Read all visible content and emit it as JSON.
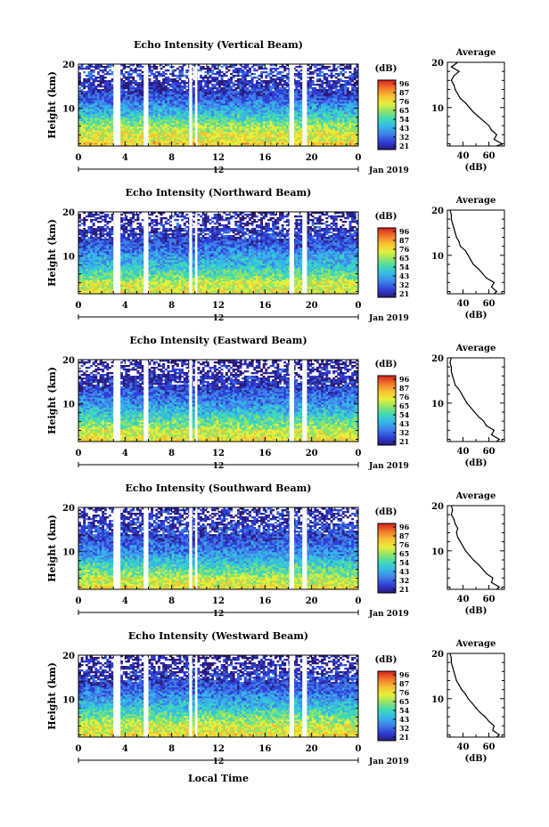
{
  "figure": {
    "xlabel": "Local Time",
    "colors": {
      "background": "#ffffff",
      "axis": "#000000",
      "colormap": [
        "#2b1a7a",
        "#2f3fd6",
        "#3f7fe8",
        "#35b6e8",
        "#3fd8b8",
        "#8fe36a",
        "#e6ef3a",
        "#f7c233",
        "#f27a2a",
        "#d62020"
      ]
    }
  },
  "chart_data": [
    {
      "type": "heatmap",
      "title": "Echo Intensity (Vertical Beam)",
      "ylabel": "Height (km)",
      "x_ticks": [
        "0",
        "4",
        "8",
        "12",
        "16",
        "20",
        "0"
      ],
      "xlim": [
        0,
        24
      ],
      "ylim": [
        1.5,
        20
      ],
      "y_ticks": [
        "10",
        "20"
      ],
      "date_marker": "12",
      "date_label": "Jan 2019",
      "colorbar": {
        "title": "(dB)",
        "ticks": [
          "96",
          "87",
          "76",
          "65",
          "54",
          "43",
          "32",
          "21"
        ],
        "range": [
          21,
          96
        ]
      },
      "data_gaps_hours": [
        [
          3.0,
          3.6
        ],
        [
          5.6,
          6.0
        ],
        [
          9.5,
          9.75
        ],
        [
          10.0,
          10.2
        ],
        [
          18.1,
          18.5
        ],
        [
          19.2,
          19.6
        ]
      ],
      "average_profile": {
        "title": "Average",
        "xlabel": "(dB)",
        "x_ticks": [
          "40",
          "60"
        ],
        "xlim": [
          28,
          72
        ],
        "y_ticks": [
          "10",
          "20"
        ],
        "heights_km": [
          1.5,
          2,
          3,
          4,
          5,
          6,
          7,
          8,
          9,
          10,
          11,
          12,
          13,
          14,
          15,
          16,
          17,
          18,
          19,
          20
        ],
        "values_db": [
          66,
          70,
          64,
          66,
          62,
          60,
          56,
          52,
          48,
          45,
          42,
          38,
          36,
          34,
          33,
          31,
          33,
          37,
          31,
          36
        ]
      }
    },
    {
      "type": "heatmap",
      "title": "Echo Intensity (Northward Beam)",
      "ylabel": "Height (km)",
      "x_ticks": [
        "0",
        "4",
        "8",
        "12",
        "16",
        "20",
        "0"
      ],
      "xlim": [
        0,
        24
      ],
      "ylim": [
        1.5,
        20
      ],
      "y_ticks": [
        "10",
        "20"
      ],
      "date_marker": "12",
      "date_label": "Jan 2019",
      "colorbar": {
        "title": "(dB)",
        "ticks": [
          "96",
          "87",
          "76",
          "65",
          "54",
          "43",
          "32",
          "21"
        ],
        "range": [
          21,
          96
        ]
      },
      "data_gaps_hours": [
        [
          3.0,
          3.6
        ],
        [
          5.6,
          6.0
        ],
        [
          9.5,
          9.75
        ],
        [
          10.0,
          10.2
        ],
        [
          18.1,
          18.5
        ],
        [
          19.2,
          19.6
        ]
      ],
      "average_profile": {
        "title": "Average",
        "xlabel": "(dB)",
        "x_ticks": [
          "40",
          "60"
        ],
        "xlim": [
          28,
          72
        ],
        "y_ticks": [
          "10",
          "20"
        ],
        "heights_km": [
          1.5,
          2,
          3,
          4,
          5,
          6,
          7,
          8,
          9,
          10,
          11,
          12,
          13,
          14,
          15,
          16,
          17,
          18,
          19,
          20
        ],
        "values_db": [
          64,
          66,
          62,
          64,
          58,
          55,
          52,
          48,
          46,
          44,
          42,
          38,
          37,
          35,
          34,
          33,
          32,
          31,
          31,
          30
        ]
      }
    },
    {
      "type": "heatmap",
      "title": "Echo Intensity (Eastward Beam)",
      "ylabel": "Height (km)",
      "x_ticks": [
        "0",
        "4",
        "8",
        "12",
        "16",
        "20",
        "0"
      ],
      "xlim": [
        0,
        24
      ],
      "ylim": [
        1.5,
        20
      ],
      "y_ticks": [
        "10",
        "20"
      ],
      "date_marker": "12",
      "date_label": "Jan 2019",
      "colorbar": {
        "title": "(dB)",
        "ticks": [
          "96",
          "87",
          "76",
          "65",
          "54",
          "43",
          "32",
          "21"
        ],
        "range": [
          21,
          96
        ]
      },
      "data_gaps_hours": [
        [
          3.0,
          3.6
        ],
        [
          5.6,
          6.0
        ],
        [
          9.5,
          9.75
        ],
        [
          10.0,
          10.2
        ],
        [
          18.1,
          18.5
        ],
        [
          19.2,
          19.6
        ]
      ],
      "average_profile": {
        "title": "Average",
        "xlabel": "(dB)",
        "x_ticks": [
          "40",
          "60"
        ],
        "xlim": [
          28,
          72
        ],
        "y_ticks": [
          "10",
          "20"
        ],
        "heights_km": [
          1.5,
          2,
          3,
          4,
          5,
          6,
          7,
          8,
          9,
          10,
          11,
          12,
          13,
          14,
          15,
          16,
          17,
          18,
          19,
          20
        ],
        "values_db": [
          66,
          68,
          62,
          64,
          58,
          56,
          52,
          49,
          46,
          43,
          41,
          39,
          37,
          34,
          33,
          32,
          31,
          31,
          30,
          31
        ]
      }
    },
    {
      "type": "heatmap",
      "title": "Echo Intensity (Southward Beam)",
      "ylabel": "Height (km)",
      "x_ticks": [
        "0",
        "4",
        "8",
        "12",
        "16",
        "20",
        "0"
      ],
      "xlim": [
        0,
        24
      ],
      "ylim": [
        1.5,
        20
      ],
      "y_ticks": [
        "10",
        "20"
      ],
      "date_marker": "12",
      "date_label": "Jan 2019",
      "colorbar": {
        "title": "(dB)",
        "ticks": [
          "96",
          "87",
          "76",
          "65",
          "54",
          "43",
          "32",
          "21"
        ],
        "range": [
          21,
          96
        ]
      },
      "data_gaps_hours": [
        [
          3.0,
          3.6
        ],
        [
          5.6,
          6.0
        ],
        [
          9.5,
          9.75
        ],
        [
          10.0,
          10.2
        ],
        [
          18.1,
          18.5
        ],
        [
          19.2,
          19.6
        ]
      ],
      "average_profile": {
        "title": "Average",
        "xlabel": "(dB)",
        "x_ticks": [
          "40",
          "60"
        ],
        "xlim": [
          28,
          72
        ],
        "y_ticks": [
          "10",
          "20"
        ],
        "heights_km": [
          1.5,
          2,
          3,
          4,
          5,
          6,
          7,
          8,
          9,
          10,
          11,
          12,
          13,
          14,
          15,
          16,
          17,
          18,
          19,
          20
        ],
        "values_db": [
          66,
          68,
          62,
          63,
          58,
          55,
          52,
          48,
          45,
          42,
          40,
          38,
          36,
          35,
          36,
          34,
          33,
          31,
          32,
          31
        ]
      }
    },
    {
      "type": "heatmap",
      "title": "Echo Intensity (Westward Beam)",
      "ylabel": "Height (km)",
      "x_ticks": [
        "0",
        "4",
        "8",
        "12",
        "16",
        "20",
        "0"
      ],
      "xlim": [
        0,
        24
      ],
      "ylim": [
        1.5,
        20
      ],
      "y_ticks": [
        "10",
        "20"
      ],
      "date_marker": "12",
      "date_label": "Jan 2019",
      "colorbar": {
        "title": "(dB)",
        "ticks": [
          "96",
          "87",
          "76",
          "65",
          "54",
          "43",
          "32",
          "21"
        ],
        "range": [
          21,
          96
        ]
      },
      "data_gaps_hours": [
        [
          3.0,
          3.6
        ],
        [
          5.6,
          6.0
        ],
        [
          9.5,
          9.75
        ],
        [
          10.0,
          10.2
        ],
        [
          18.1,
          18.5
        ],
        [
          19.2,
          19.6
        ]
      ],
      "average_profile": {
        "title": "Average",
        "xlabel": "(dB)",
        "x_ticks": [
          "40",
          "60"
        ],
        "xlim": [
          28,
          72
        ],
        "y_ticks": [
          "10",
          "20"
        ],
        "heights_km": [
          1.5,
          2,
          3,
          4,
          5,
          6,
          7,
          8,
          9,
          10,
          11,
          12,
          13,
          14,
          15,
          16,
          17,
          18,
          19,
          20
        ],
        "values_db": [
          66,
          68,
          63,
          64,
          60,
          57,
          53,
          50,
          47,
          44,
          42,
          39,
          37,
          35,
          34,
          33,
          32,
          31,
          31,
          30
        ]
      }
    }
  ]
}
